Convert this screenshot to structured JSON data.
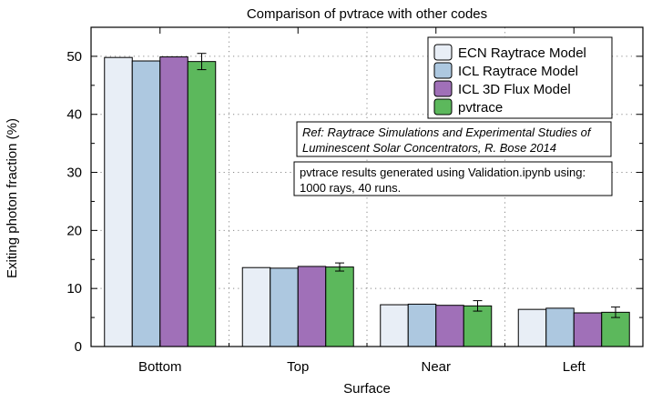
{
  "chart_data": {
    "type": "bar",
    "title": "Comparison of pvtrace with other codes",
    "xlabel": "Surface",
    "ylabel": "Exiting photon fraction (%)",
    "categories": [
      "Bottom",
      "Top",
      "Near",
      "Left"
    ],
    "ylim": [
      0,
      55
    ],
    "yticks": [
      0,
      10,
      20,
      30,
      40,
      50
    ],
    "grid": true,
    "legend_position": "top-right",
    "series": [
      {
        "name": "ECN Raytrace Model",
        "color": "#e8eef6",
        "values": [
          49.8,
          13.6,
          7.2,
          6.4
        ]
      },
      {
        "name": "ICL Raytrace Model",
        "color": "#adc8e0",
        "values": [
          49.2,
          13.5,
          7.3,
          6.6
        ]
      },
      {
        "name": "ICL 3D Flux Model",
        "color": "#a070b8",
        "values": [
          49.9,
          13.8,
          7.1,
          5.8
        ]
      },
      {
        "name": "pvtrace",
        "color": "#5cb85c",
        "values": [
          49.1,
          13.7,
          7.0,
          5.9
        ],
        "errors": [
          1.4,
          0.7,
          0.9,
          0.9
        ]
      }
    ],
    "annotations": [
      {
        "lines": [
          "Ref: Raytrace Simulations and Experimental Studies of",
          "Luminescent Solar Concentrators, R. Bose 2014"
        ],
        "style": "italic"
      },
      {
        "lines": [
          "pvtrace results generated using Validation.ipynb using:",
          "1000 rays, 40 runs."
        ],
        "style": "normal"
      }
    ]
  }
}
